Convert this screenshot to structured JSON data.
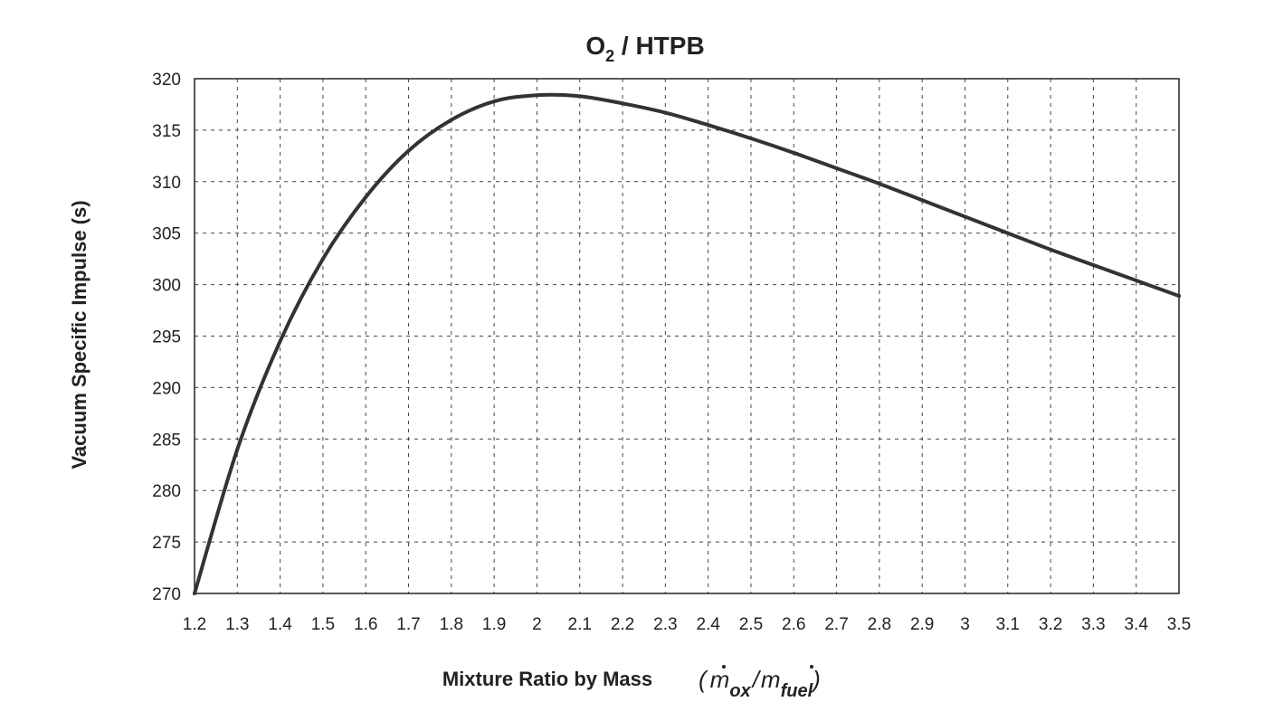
{
  "chart_data": {
    "type": "line",
    "title_main": "O",
    "title_sub": "2",
    "title_rest": " / HTPB",
    "ylabel": "Vacuum Specific Impulse (s)",
    "xlabel": "Mixture Ratio by Mass",
    "xlabel_formula": {
      "open": "(",
      "numerator_symbol": "m",
      "numerator_sub": "ox",
      "slash": "/",
      "denominator_symbol": "m",
      "denominator_sub": "fuel",
      "close": ")"
    },
    "xlim": [
      1.2,
      3.5
    ],
    "ylim": [
      270,
      320
    ],
    "x_tick_labels": [
      "1.2",
      "1.3",
      "1.4",
      "1.5",
      "1.6",
      "1.7",
      "1.8",
      "1.9",
      "2",
      "2.1",
      "2.2",
      "2.3",
      "2.4",
      "2.5",
      "2.6",
      "2.7",
      "2.8",
      "2.9",
      "3",
      "3.1",
      "3.2",
      "3.3",
      "3.4",
      "3.5"
    ],
    "y_tick_labels": [
      "320",
      "315",
      "310",
      "305",
      "300",
      "295",
      "290",
      "285",
      "280",
      "275",
      "270"
    ],
    "grid": true,
    "grid_style": "dashed",
    "series": [
      {
        "color": "#333333",
        "x": [
          1.2,
          1.3,
          1.4,
          1.5,
          1.6,
          1.7,
          1.8,
          1.9,
          2.0,
          2.1,
          2.2,
          2.3,
          2.4,
          2.5,
          2.6,
          2.7,
          2.8,
          2.9,
          3.0,
          3.1,
          3.2,
          3.3,
          3.4,
          3.5
        ],
        "y": [
          270,
          284,
          294.5,
          302.5,
          308.5,
          313,
          316,
          317.8,
          318.4,
          318.3,
          317.6,
          316.7,
          315.5,
          314.2,
          312.8,
          311.3,
          309.8,
          308.2,
          306.6,
          305,
          303.4,
          301.9,
          300.4,
          298.9
        ]
      }
    ]
  }
}
